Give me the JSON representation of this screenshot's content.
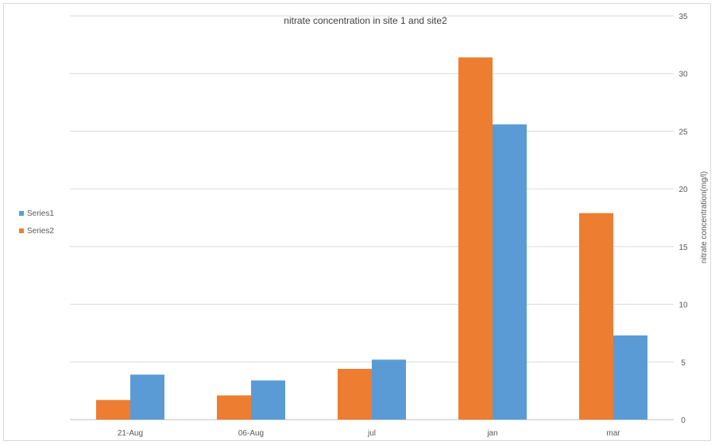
{
  "chart_data": {
    "type": "bar",
    "title": "nitrate concentration in site 1 and site2",
    "xlabel": "",
    "ylabel": "nitrate concentration(mg/l)",
    "categories": [
      "21-Aug",
      "06-Aug",
      "jul",
      "jan",
      "mar"
    ],
    "series": [
      {
        "name": "Series2",
        "color": "#ed7d31",
        "values": [
          1.7,
          2.1,
          4.4,
          31.4,
          17.9
        ]
      },
      {
        "name": "Series1",
        "color": "#5b9bd5",
        "values": [
          3.9,
          3.4,
          5.2,
          25.6,
          7.3
        ]
      }
    ],
    "legend_order": [
      "Series1",
      "Series2"
    ],
    "ylim": [
      0,
      35
    ],
    "yticks": [
      0,
      5,
      10,
      15,
      20,
      25,
      30,
      35
    ],
    "y_axis_side": "right",
    "grid": true,
    "legend_position": "left"
  }
}
